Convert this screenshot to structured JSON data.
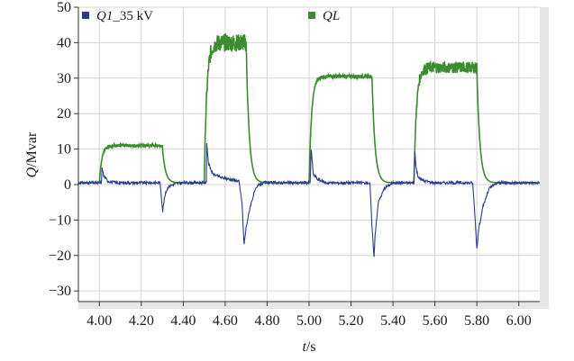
{
  "chart_data": {
    "type": "line",
    "title": "",
    "xlabel_var": "t",
    "xlabel_unit": "/s",
    "ylabel_var": "Q",
    "ylabel_unit": "/Mvar",
    "xlim": [
      3.9,
      6.1
    ],
    "ylim": [
      -33,
      50
    ],
    "xticks": [
      4.0,
      4.2,
      4.4,
      4.6,
      4.8,
      5.0,
      5.2,
      5.4,
      5.6,
      5.8,
      6.0
    ],
    "xtick_labels": [
      "4.00",
      "4.20",
      "4.40",
      "4.60",
      "4.80",
      "5.00",
      "5.20",
      "5.40",
      "5.60",
      "5.80",
      "6.00"
    ],
    "yticks": [
      -30,
      -20,
      -10,
      0,
      10,
      20,
      30,
      40,
      50
    ],
    "ytick_labels": [
      "−30",
      "−20",
      "−10",
      "0",
      "10",
      "20",
      "30",
      "40",
      "50"
    ],
    "grid": true,
    "legend_position": "top",
    "series": [
      {
        "name_var": "Q1",
        "name_rest": "_35 kV",
        "color": "#2b3a8c",
        "x": [
          3.9,
          4.01,
          4.013,
          4.02,
          4.04,
          4.08,
          4.2,
          4.29,
          4.302,
          4.31,
          4.318,
          4.33,
          4.36,
          4.4,
          4.51,
          4.512,
          4.52,
          4.54,
          4.58,
          4.62,
          4.665,
          4.68,
          4.69,
          4.7,
          4.72,
          4.74,
          4.76,
          4.79,
          4.9,
          5.005,
          5.01,
          5.02,
          5.04,
          5.08,
          5.2,
          5.29,
          5.3,
          5.31,
          5.315,
          5.33,
          5.36,
          5.4,
          5.5,
          5.505,
          5.51,
          5.52,
          5.55,
          5.6,
          5.7,
          5.78,
          5.79,
          5.8,
          5.81,
          5.83,
          5.86,
          5.9,
          6.1
        ],
        "y": [
          0.5,
          0.5,
          5.0,
          2.5,
          1.0,
          0.5,
          0.5,
          0.5,
          -7.5,
          -4.0,
          -2.0,
          -0.5,
          0.2,
          0.5,
          0.5,
          12.0,
          6.0,
          3.0,
          2.0,
          1.5,
          1.0,
          -5.0,
          -17.0,
          -12.0,
          -6.0,
          -2.0,
          0.0,
          0.5,
          0.5,
          0.5,
          10.0,
          3.0,
          1.5,
          0.5,
          0.5,
          0.5,
          -12.0,
          -20.5,
          -14.0,
          -5.0,
          -1.0,
          0.5,
          0.5,
          9.0,
          5.0,
          2.0,
          1.0,
          0.5,
          0.5,
          0.5,
          -8.0,
          -18.0,
          -12.0,
          -6.0,
          -1.0,
          0.5,
          0.5
        ]
      },
      {
        "name_var": "QL",
        "name_rest": "",
        "color": "#3a8c2e",
        "pulses": [
          {
            "t_on": 4.0,
            "t_off": 4.3,
            "level": 11.0,
            "ripple": 0.4
          },
          {
            "t_on": 4.5,
            "t_off": 4.7,
            "level": 40.0,
            "ripple": 2.5
          },
          {
            "t_on": 5.0,
            "t_off": 5.3,
            "level": 30.5,
            "ripple": 0.5
          },
          {
            "t_on": 5.5,
            "t_off": 5.8,
            "level": 33.0,
            "ripple": 1.6
          }
        ],
        "baseline": 0.5
      }
    ]
  }
}
